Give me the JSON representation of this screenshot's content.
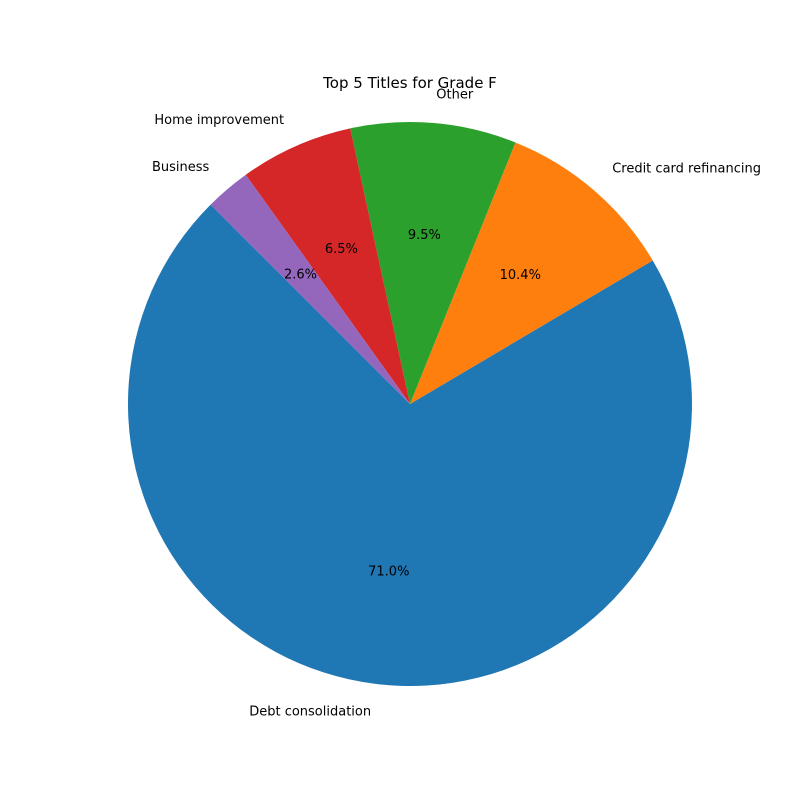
{
  "chart_data": {
    "type": "pie",
    "title": "Top 5 Titles for Grade F",
    "start_angle_deg": 135,
    "direction": "counterclockwise",
    "slices": [
      {
        "label": "Debt consolidation",
        "value": 71.0,
        "pct_label": "71.0%",
        "color": "#1f77b4"
      },
      {
        "label": "Credit card refinancing",
        "value": 10.4,
        "pct_label": "10.4%",
        "color": "#ff7f0e"
      },
      {
        "label": "Other",
        "value": 9.5,
        "pct_label": "9.5%",
        "color": "#2ca02c"
      },
      {
        "label": "Home improvement",
        "value": 6.5,
        "pct_label": "6.5%",
        "color": "#d62728"
      },
      {
        "label": "Business",
        "value": 2.6,
        "pct_label": "2.6%",
        "color": "#9467bd"
      }
    ]
  }
}
